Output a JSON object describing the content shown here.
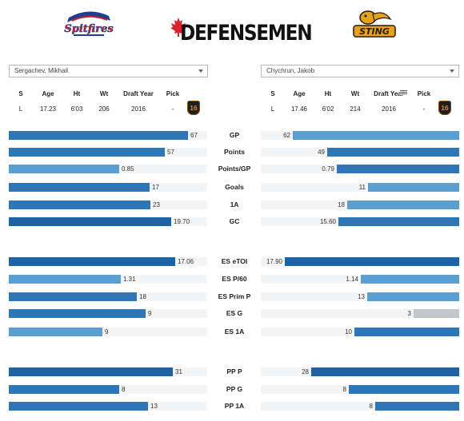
{
  "header": {
    "title": "DEFENSEMEN",
    "left_logo": "Spitfires",
    "right_logo": "Stingers"
  },
  "players": {
    "left": {
      "name": "Sergachev, Mikhail",
      "shoots": "L",
      "age": "17.23",
      "height": "6'03",
      "weight": "206",
      "draft_year": "2016",
      "pick": "-",
      "badge": "16"
    },
    "right": {
      "name": "Chychrun, Jakob",
      "shoots": "L",
      "age": "17.46",
      "height": "6'02",
      "weight": "214",
      "draft_year": "2016",
      "pick": "-",
      "badge": "16"
    }
  },
  "info_headers": {
    "s": "S",
    "age": "Age",
    "ht": "Ht",
    "wt": "Wt",
    "draft": "Draft Year",
    "pick": "Pick"
  },
  "stats": [
    {
      "label": "GP",
      "left": "67",
      "right": "62",
      "lf": 0.905,
      "rf": 0.84,
      "lc": "med",
      "rc": "light"
    },
    {
      "label": "Points",
      "left": "57",
      "right": "49",
      "lf": 0.785,
      "rf": 0.665,
      "lc": "med",
      "rc": "med"
    },
    {
      "label": "Points/GP",
      "left": "0.85",
      "right": "0.79",
      "lf": 0.555,
      "rf": 0.615,
      "lc": "light",
      "rc": "med"
    },
    {
      "label": "Goals",
      "left": "17",
      "right": "11",
      "lf": 0.71,
      "rf": 0.46,
      "lc": "med",
      "rc": "light"
    },
    {
      "label": "1A",
      "left": "23",
      "right": "18",
      "lf": 0.715,
      "rf": 0.565,
      "lc": "med",
      "rc": "light"
    },
    {
      "label": "GC",
      "left": "19.70",
      "right": "15.60",
      "lf": 0.82,
      "rf": 0.61,
      "lc": "dark",
      "rc": "med"
    },
    {
      "label": "ES eTOI",
      "left": "17.06",
      "right": "17.90",
      "lf": 0.838,
      "rf": 0.88,
      "lc": "dark",
      "rc": "dark"
    },
    {
      "label": "ES P/60",
      "left": "1.31",
      "right": "1.14",
      "lf": 0.565,
      "rf": 0.495,
      "lc": "light",
      "rc": "light"
    },
    {
      "label": "ES Prim P",
      "left": "18",
      "right": "13",
      "lf": 0.645,
      "rf": 0.465,
      "lc": "med",
      "rc": "light"
    },
    {
      "label": "ES G",
      "left": "9",
      "right": "3",
      "lf": 0.69,
      "rf": 0.23,
      "lc": "med",
      "rc": "grey"
    },
    {
      "label": "ES 1A",
      "left": "9",
      "right": "10",
      "lf": 0.47,
      "rf": 0.53,
      "lc": "light",
      "rc": "med"
    },
    {
      "label": "PP P",
      "left": "31",
      "right": "28",
      "lf": 0.825,
      "rf": 0.745,
      "lc": "dark",
      "rc": "dark"
    },
    {
      "label": "PP G",
      "left": "8",
      "right": "8",
      "lf": 0.555,
      "rf": 0.555,
      "lc": "med",
      "rc": "med"
    },
    {
      "label": "PP 1A",
      "left": "13",
      "right": "8",
      "lf": 0.7,
      "rf": 0.425,
      "lc": "med",
      "rc": "med"
    }
  ],
  "colors": {
    "dark": "#1e64a5",
    "med": "#2e76b6",
    "light": "#5a9fd0",
    "grey": "#c3c7cb"
  }
}
